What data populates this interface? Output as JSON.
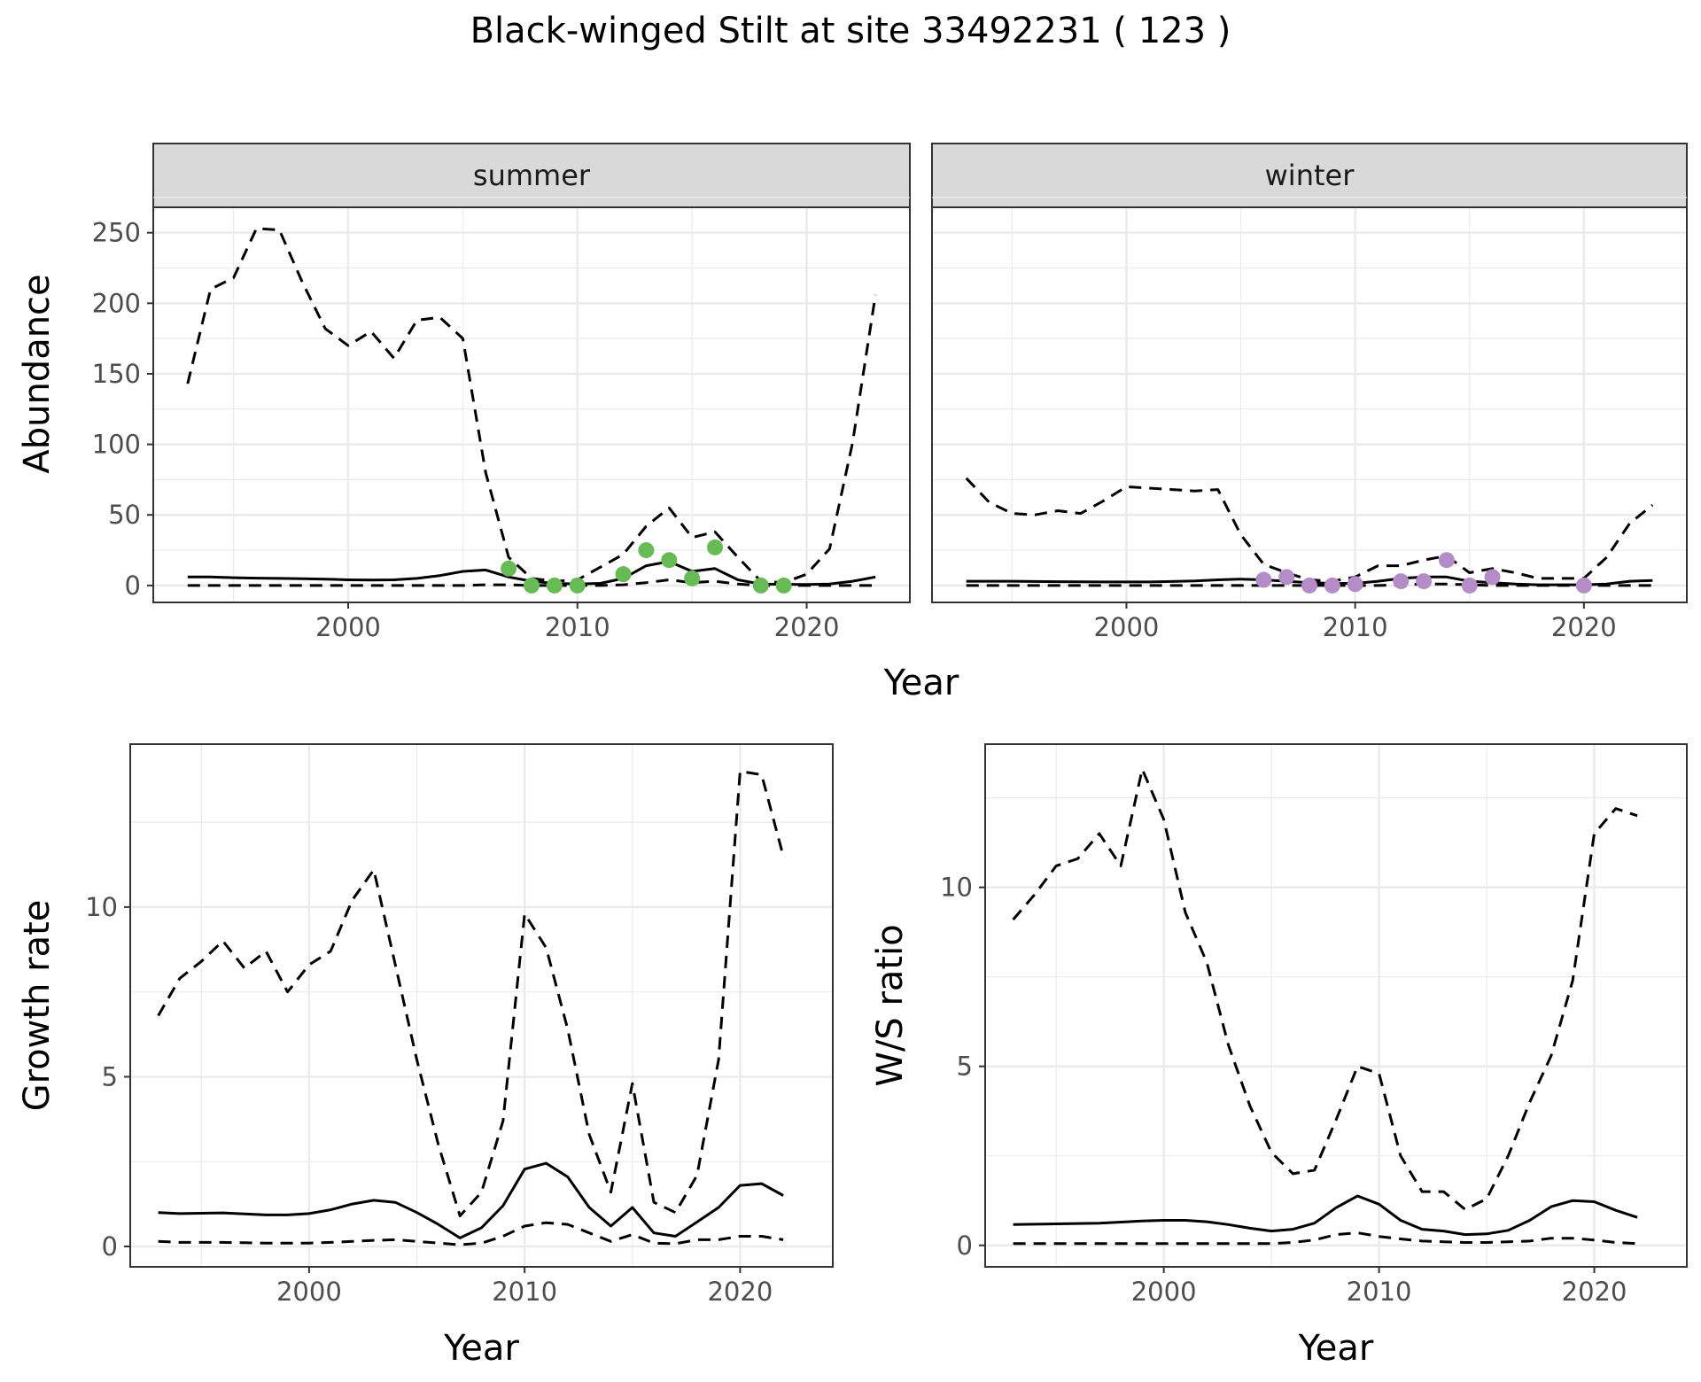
{
  "title": "Black-winged Stilt at site 33492231 ( 123 )",
  "colors": {
    "summer_points": "#66bb55",
    "winter_points": "#b48cc8",
    "line": "#000000"
  },
  "chart_data": [
    {
      "type": "line",
      "facet": "summer",
      "xlabel": "Year",
      "ylabel": "Abundance",
      "xlim": [
        1991.5,
        2024.5
      ],
      "ylim": [
        -12,
        268
      ],
      "xticks": [
        2000,
        2010,
        2020
      ],
      "yticks": [
        0,
        50,
        100,
        150,
        200,
        250
      ],
      "grid": true,
      "series": [
        {
          "style": "solid",
          "x": [
            1993,
            1994,
            1995,
            1996,
            1997,
            1998,
            1999,
            2000,
            2001,
            2002,
            2003,
            2004,
            2005,
            2006,
            2007,
            2008,
            2009,
            2010,
            2011,
            2012,
            2013,
            2014,
            2015,
            2016,
            2017,
            2018,
            2019,
            2020,
            2021,
            2022,
            2023
          ],
          "y": [
            6,
            6,
            5.5,
            5.2,
            5,
            4.8,
            4.5,
            4,
            3.8,
            4,
            5,
            7,
            10,
            11,
            6,
            3,
            1.5,
            1,
            1.5,
            5,
            14,
            17,
            10,
            12,
            4,
            1,
            0.8,
            0.7,
            1,
            3,
            6
          ]
        },
        {
          "style": "dashed",
          "x": [
            1993,
            1994,
            1995,
            1996,
            1997,
            1998,
            1999,
            2000,
            2001,
            2002,
            2003,
            2004,
            2005,
            2006,
            2007,
            2008,
            2009,
            2010,
            2011,
            2012,
            2013,
            2014,
            2015,
            2016,
            2017,
            2018,
            2019,
            2020,
            2021,
            2022,
            2023
          ],
          "y": [
            143,
            210,
            218,
            253,
            252,
            215,
            182,
            170,
            180,
            161,
            188,
            190,
            175,
            80,
            20,
            5,
            3,
            4,
            13,
            22,
            42,
            55,
            34,
            38,
            20,
            3,
            2,
            8,
            26,
            101,
            206
          ]
        },
        {
          "style": "dashed",
          "x": [
            1993,
            1994,
            1995,
            1996,
            1997,
            1998,
            1999,
            2000,
            2001,
            2002,
            2003,
            2004,
            2005,
            2006,
            2007,
            2008,
            2009,
            2010,
            2011,
            2012,
            2013,
            2014,
            2015,
            2016,
            2017,
            2018,
            2019,
            2020,
            2021,
            2022,
            2023
          ],
          "y": [
            0,
            0,
            0,
            0,
            0,
            0,
            0,
            0,
            0,
            0,
            0,
            0,
            0,
            0.5,
            0.5,
            0,
            0,
            0,
            0,
            0.5,
            2,
            4,
            2,
            3,
            1,
            0,
            0,
            0,
            0,
            0,
            0
          ]
        },
        {
          "style": "points",
          "x": [
            2007,
            2008,
            2009,
            2010,
            2012,
            2013,
            2014,
            2015,
            2016,
            2018,
            2019
          ],
          "y": [
            12,
            0,
            0,
            0,
            8,
            25,
            18,
            5,
            27,
            0,
            0
          ]
        }
      ]
    },
    {
      "type": "line",
      "facet": "winter",
      "xlabel": "Year",
      "ylabel": "Abundance",
      "xlim": [
        1991.5,
        2024.5
      ],
      "ylim": [
        -12,
        268
      ],
      "xticks": [
        2000,
        2010,
        2020
      ],
      "yticks": [
        0,
        50,
        100,
        150,
        200,
        250
      ],
      "grid": true,
      "series": [
        {
          "style": "solid",
          "x": [
            1993,
            1994,
            1995,
            1996,
            1997,
            1998,
            1999,
            2000,
            2001,
            2002,
            2003,
            2004,
            2005,
            2006,
            2007,
            2008,
            2009,
            2010,
            2011,
            2012,
            2013,
            2014,
            2015,
            2016,
            2017,
            2018,
            2019,
            2020,
            2021,
            2022,
            2023
          ],
          "y": [
            3,
            3,
            3,
            2.8,
            2.7,
            2.6,
            2.5,
            2.5,
            2.5,
            2.8,
            3.2,
            4,
            4.5,
            4,
            3,
            2,
            1.5,
            1.5,
            3,
            5,
            6,
            6,
            3,
            2,
            1,
            0.5,
            0.5,
            0.5,
            1,
            3,
            3.5
          ]
        },
        {
          "style": "dashed",
          "x": [
            1993,
            1994,
            1995,
            1996,
            1997,
            1998,
            1999,
            2000,
            2001,
            2002,
            2003,
            2004,
            2005,
            2006,
            2007,
            2008,
            2009,
            2010,
            2011,
            2012,
            2013,
            2014,
            2015,
            2016,
            2017,
            2018,
            2019,
            2020,
            2021,
            2022,
            2023
          ],
          "y": [
            76,
            59,
            51,
            50,
            53,
            51,
            60,
            70,
            69,
            68,
            67,
            68,
            36,
            15,
            9,
            4,
            3,
            6,
            14,
            14,
            18,
            21,
            9,
            12,
            9,
            5,
            5,
            5,
            20,
            44,
            57
          ]
        },
        {
          "style": "dashed",
          "x": [
            1993,
            1994,
            1995,
            1996,
            1997,
            1998,
            1999,
            2000,
            2001,
            2002,
            2003,
            2004,
            2005,
            2006,
            2007,
            2008,
            2009,
            2010,
            2011,
            2012,
            2013,
            2014,
            2015,
            2016,
            2017,
            2018,
            2019,
            2020,
            2021,
            2022,
            2023
          ],
          "y": [
            0,
            0,
            0,
            0,
            0,
            0,
            0,
            0,
            0,
            0,
            0,
            0,
            0,
            0,
            0,
            0,
            0,
            0,
            0,
            0.5,
            1,
            1,
            0.5,
            0,
            0,
            0,
            0,
            0,
            0,
            0,
            0
          ]
        },
        {
          "style": "points",
          "x": [
            2006,
            2007,
            2008,
            2009,
            2010,
            2012,
            2013,
            2014,
            2015,
            2016,
            2020
          ],
          "y": [
            4,
            6,
            0,
            0,
            1,
            3,
            3,
            18,
            0,
            6,
            0
          ]
        }
      ]
    },
    {
      "type": "line",
      "facet": "",
      "xlabel": "Year",
      "ylabel": "Growth rate",
      "xlim": [
        1991.7,
        2024.3
      ],
      "ylim": [
        -0.6,
        14.8
      ],
      "xticks": [
        2000,
        2010,
        2020
      ],
      "yticks": [
        0,
        5,
        10
      ],
      "grid": true,
      "series": [
        {
          "style": "solid",
          "x": [
            1993,
            1994,
            1995,
            1996,
            1997,
            1998,
            1999,
            2000,
            2001,
            2002,
            2003,
            2004,
            2005,
            2006,
            2007,
            2008,
            2009,
            2010,
            2011,
            2012,
            2013,
            2014,
            2015,
            2016,
            2017,
            2018,
            2019,
            2020,
            2021,
            2022
          ],
          "y": [
            1,
            0.97,
            0.98,
            0.99,
            0.96,
            0.93,
            0.93,
            0.97,
            1.08,
            1.25,
            1.36,
            1.3,
            1,
            0.65,
            0.25,
            0.55,
            1.2,
            2.28,
            2.45,
            2.05,
            1.15,
            0.6,
            1.15,
            0.4,
            0.3,
            0.72,
            1.15,
            1.8,
            1.85,
            1.5
          ]
        },
        {
          "style": "dashed",
          "x": [
            1993,
            1994,
            1995,
            1996,
            1997,
            1998,
            1999,
            2000,
            2001,
            2002,
            2003,
            2004,
            2005,
            2006,
            2007,
            2008,
            2009,
            2010,
            2011,
            2012,
            2013,
            2014,
            2015,
            2016,
            2017,
            2018,
            2019,
            2020,
            2021,
            2022
          ],
          "y": [
            6.8,
            7.9,
            8.4,
            9.0,
            8.2,
            8.7,
            7.5,
            8.3,
            8.7,
            10.2,
            11.1,
            8.3,
            5.5,
            3.0,
            0.9,
            1.6,
            3.7,
            9.8,
            8.8,
            6.4,
            3.3,
            1.6,
            4.8,
            1.3,
            1.0,
            2.1,
            5.5,
            14.0,
            13.9,
            11.5
          ]
        },
        {
          "style": "dashed",
          "x": [
            1993,
            1994,
            1995,
            1996,
            1997,
            1998,
            1999,
            2000,
            2001,
            2002,
            2003,
            2004,
            2005,
            2006,
            2007,
            2008,
            2009,
            2010,
            2011,
            2012,
            2013,
            2014,
            2015,
            2016,
            2017,
            2018,
            2019,
            2020,
            2021,
            2022
          ],
          "y": [
            0.15,
            0.12,
            0.12,
            0.12,
            0.11,
            0.1,
            0.1,
            0.1,
            0.12,
            0.15,
            0.18,
            0.2,
            0.15,
            0.1,
            0.05,
            0.1,
            0.3,
            0.6,
            0.7,
            0.65,
            0.4,
            0.15,
            0.35,
            0.1,
            0.08,
            0.2,
            0.2,
            0.3,
            0.3,
            0.2
          ]
        }
      ]
    },
    {
      "type": "line",
      "facet": "",
      "xlabel": "Year",
      "ylabel": "W/S ratio",
      "xlim": [
        1991.7,
        2024.3
      ],
      "ylim": [
        -0.6,
        14.0
      ],
      "xticks": [
        2000,
        2010,
        2020
      ],
      "yticks": [
        0,
        5,
        10
      ],
      "grid": true,
      "series": [
        {
          "style": "solid",
          "x": [
            1993,
            1994,
            1995,
            1996,
            1997,
            1998,
            1999,
            2000,
            2001,
            2002,
            2003,
            2004,
            2005,
            2006,
            2007,
            2008,
            2009,
            2010,
            2011,
            2012,
            2013,
            2014,
            2015,
            2016,
            2017,
            2018,
            2019,
            2020,
            2021,
            2022
          ],
          "y": [
            0.58,
            0.59,
            0.6,
            0.61,
            0.62,
            0.65,
            0.68,
            0.7,
            0.7,
            0.66,
            0.58,
            0.48,
            0.4,
            0.45,
            0.62,
            1.05,
            1.38,
            1.15,
            0.7,
            0.45,
            0.4,
            0.3,
            0.32,
            0.42,
            0.7,
            1.08,
            1.25,
            1.22,
            0.98,
            0.78
          ]
        },
        {
          "style": "dashed",
          "x": [
            1993,
            1994,
            1995,
            1996,
            1997,
            1998,
            1999,
            2000,
            2001,
            2002,
            2003,
            2004,
            2005,
            2006,
            2007,
            2008,
            2009,
            2010,
            2011,
            2012,
            2013,
            2014,
            2015,
            2016,
            2017,
            2018,
            2019,
            2020,
            2021,
            2022
          ],
          "y": [
            9.1,
            9.8,
            10.6,
            10.8,
            11.5,
            10.6,
            13.3,
            11.9,
            9.3,
            7.9,
            5.6,
            3.9,
            2.6,
            2.0,
            2.1,
            3.5,
            5.0,
            4.8,
            2.5,
            1.5,
            1.5,
            1.0,
            1.3,
            2.5,
            4.0,
            5.3,
            7.4,
            11.5,
            12.2,
            12.0
          ]
        },
        {
          "style": "dashed",
          "x": [
            1993,
            1994,
            1995,
            1996,
            1997,
            1998,
            1999,
            2000,
            2001,
            2002,
            2003,
            2004,
            2005,
            2006,
            2007,
            2008,
            2009,
            2010,
            2011,
            2012,
            2013,
            2014,
            2015,
            2016,
            2017,
            2018,
            2019,
            2020,
            2021,
            2022
          ],
          "y": [
            0.05,
            0.05,
            0.05,
            0.05,
            0.05,
            0.05,
            0.05,
            0.05,
            0.05,
            0.05,
            0.05,
            0.05,
            0.05,
            0.08,
            0.15,
            0.3,
            0.35,
            0.25,
            0.18,
            0.12,
            0.1,
            0.08,
            0.08,
            0.1,
            0.12,
            0.2,
            0.2,
            0.15,
            0.08,
            0.05
          ]
        }
      ]
    }
  ]
}
